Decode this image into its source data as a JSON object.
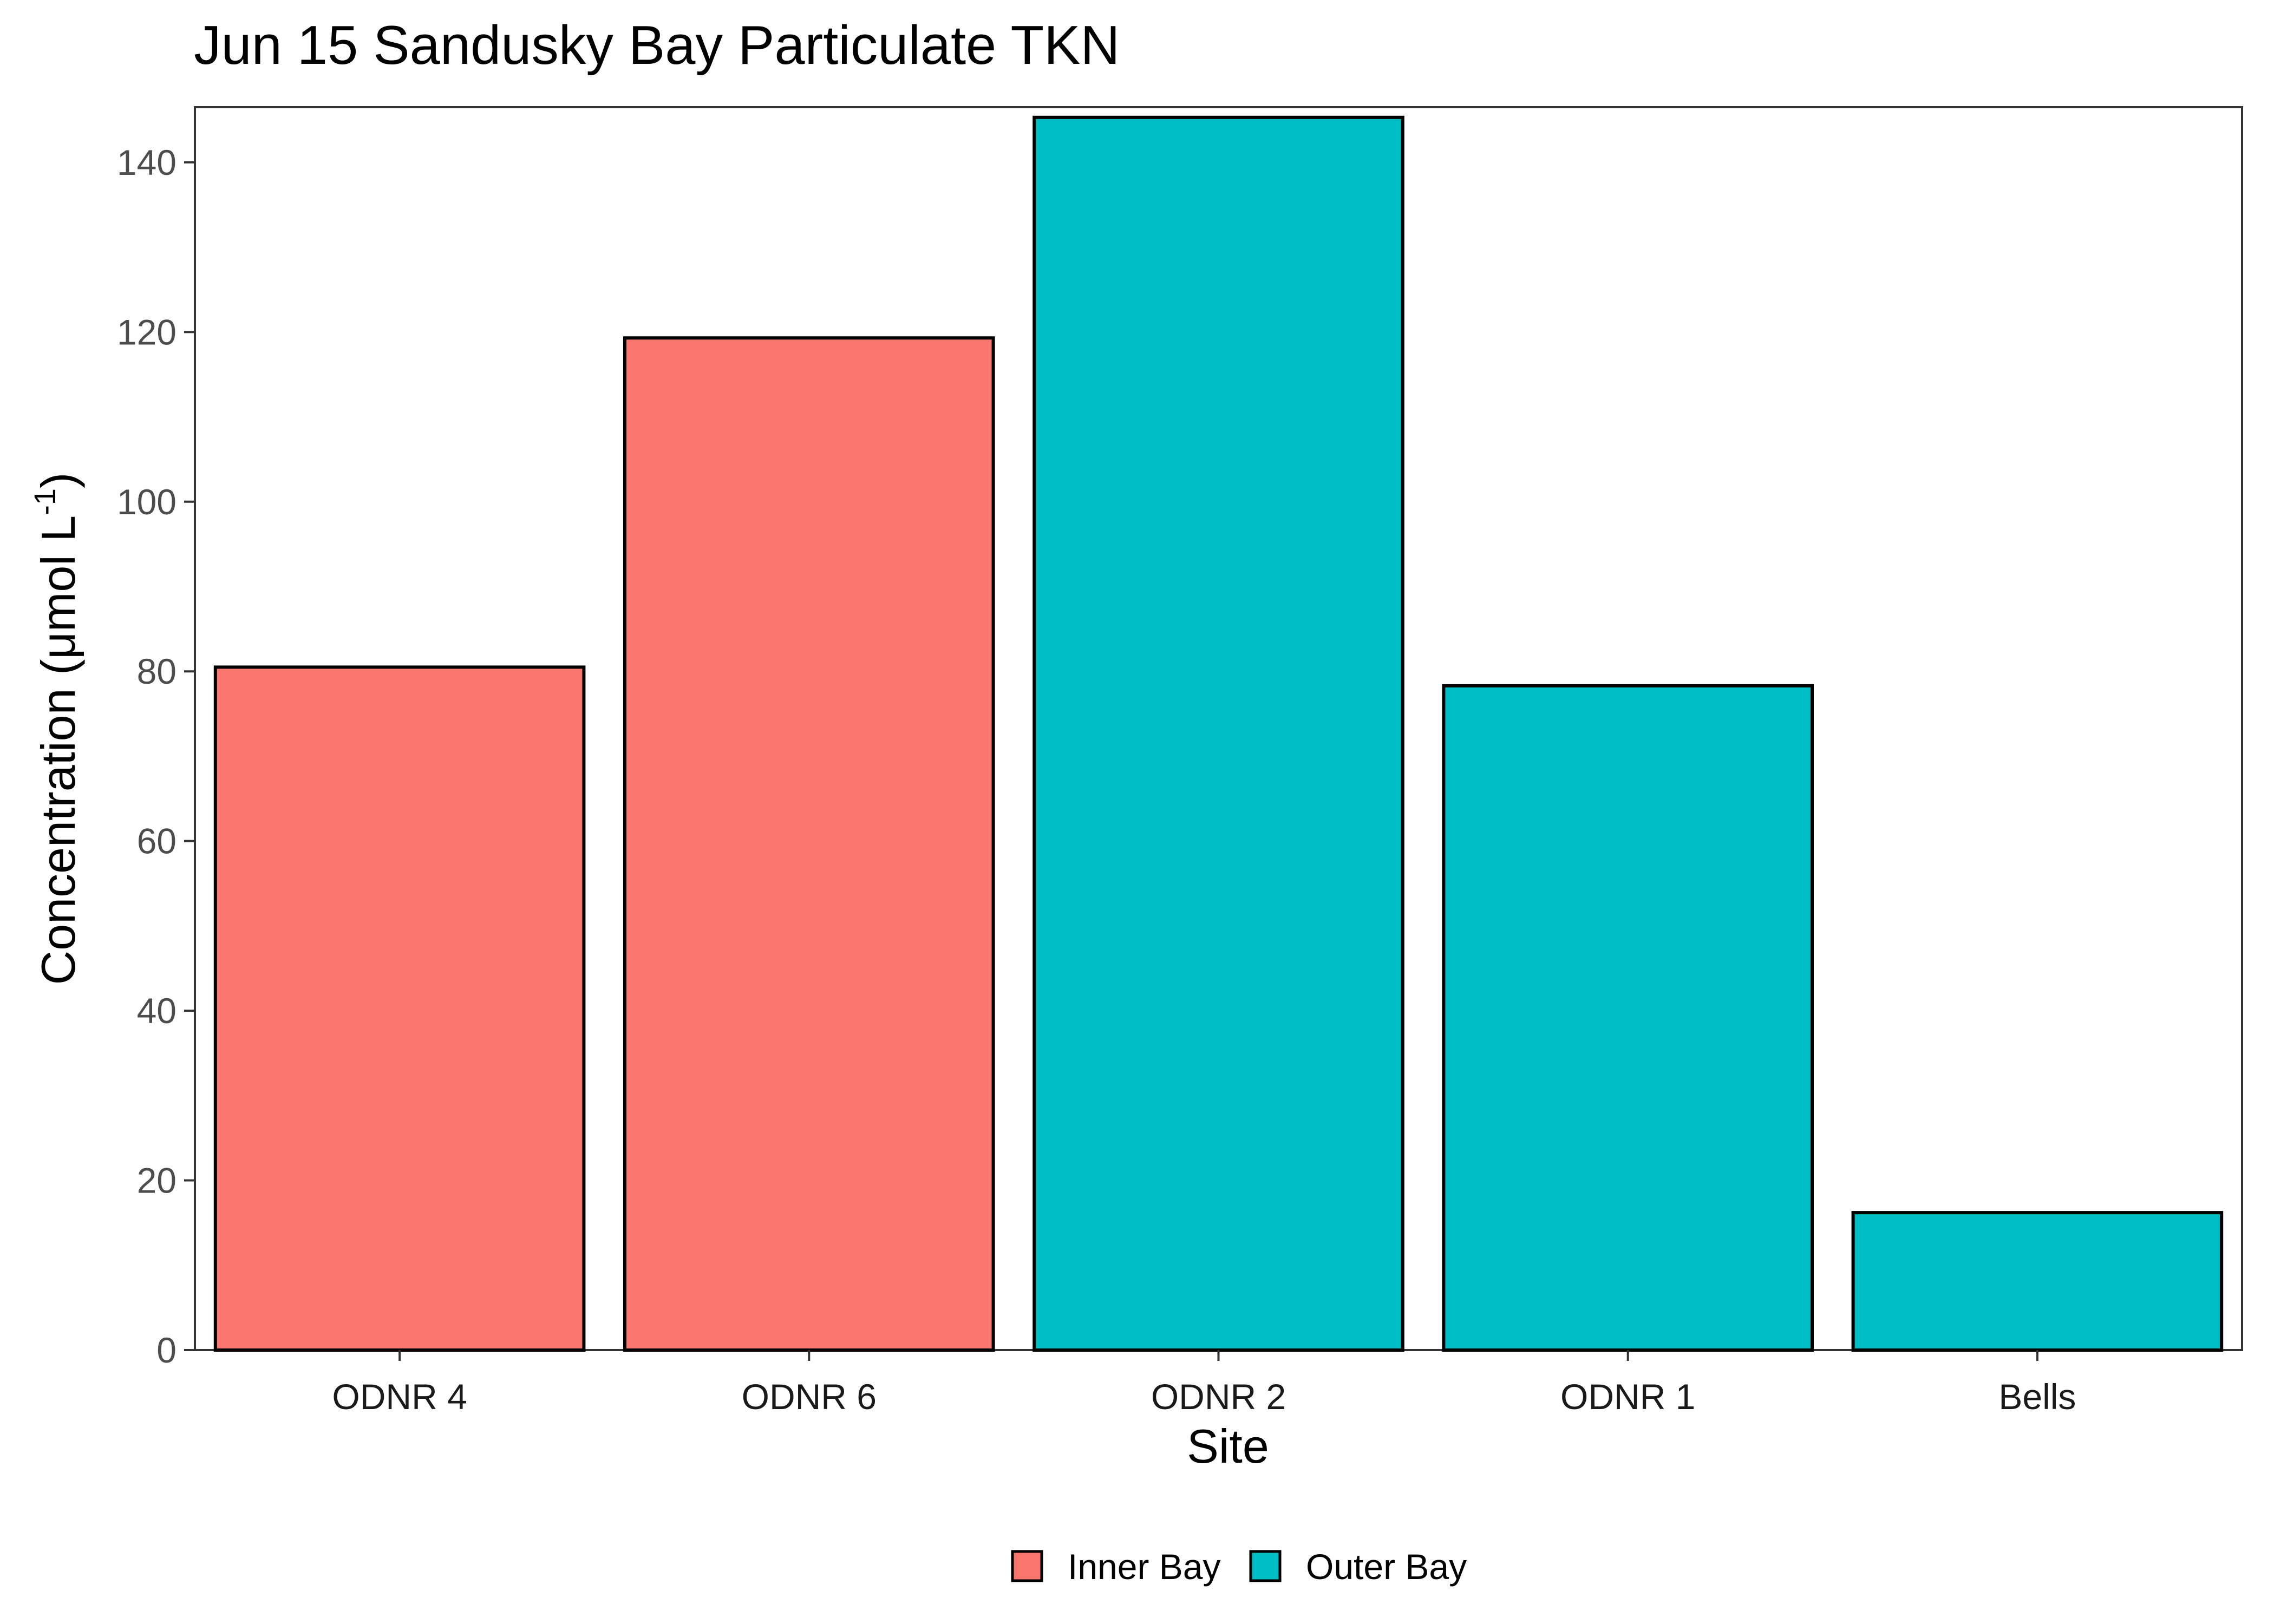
{
  "chart_data": {
    "type": "bar",
    "title": "Jun 15 Sandusky Bay Particulate TKN",
    "xlabel": "Site",
    "ylabel": {
      "prefix": "Concentration (μmol L",
      "superscript": "-1",
      "suffix": ")"
    },
    "categories": [
      "ODNR 4",
      "ODNR 6",
      "ODNR 2",
      "ODNR 1",
      "Bells"
    ],
    "values": [
      80.5,
      119.3,
      145.3,
      78.3,
      16.2
    ],
    "groups": [
      "Inner Bay",
      "Inner Bay",
      "Outer Bay",
      "Outer Bay",
      "Outer Bay"
    ],
    "y_ticks": [
      0,
      20,
      40,
      60,
      80,
      100,
      120,
      140
    ],
    "ylim": [
      0,
      146.5
    ],
    "grid": false,
    "legend": {
      "position": "bottom",
      "entries": [
        {
          "label": "Inner Bay",
          "color": "#F8766D"
        },
        {
          "label": "Outer Bay",
          "color": "#00BFC4"
        }
      ]
    }
  }
}
